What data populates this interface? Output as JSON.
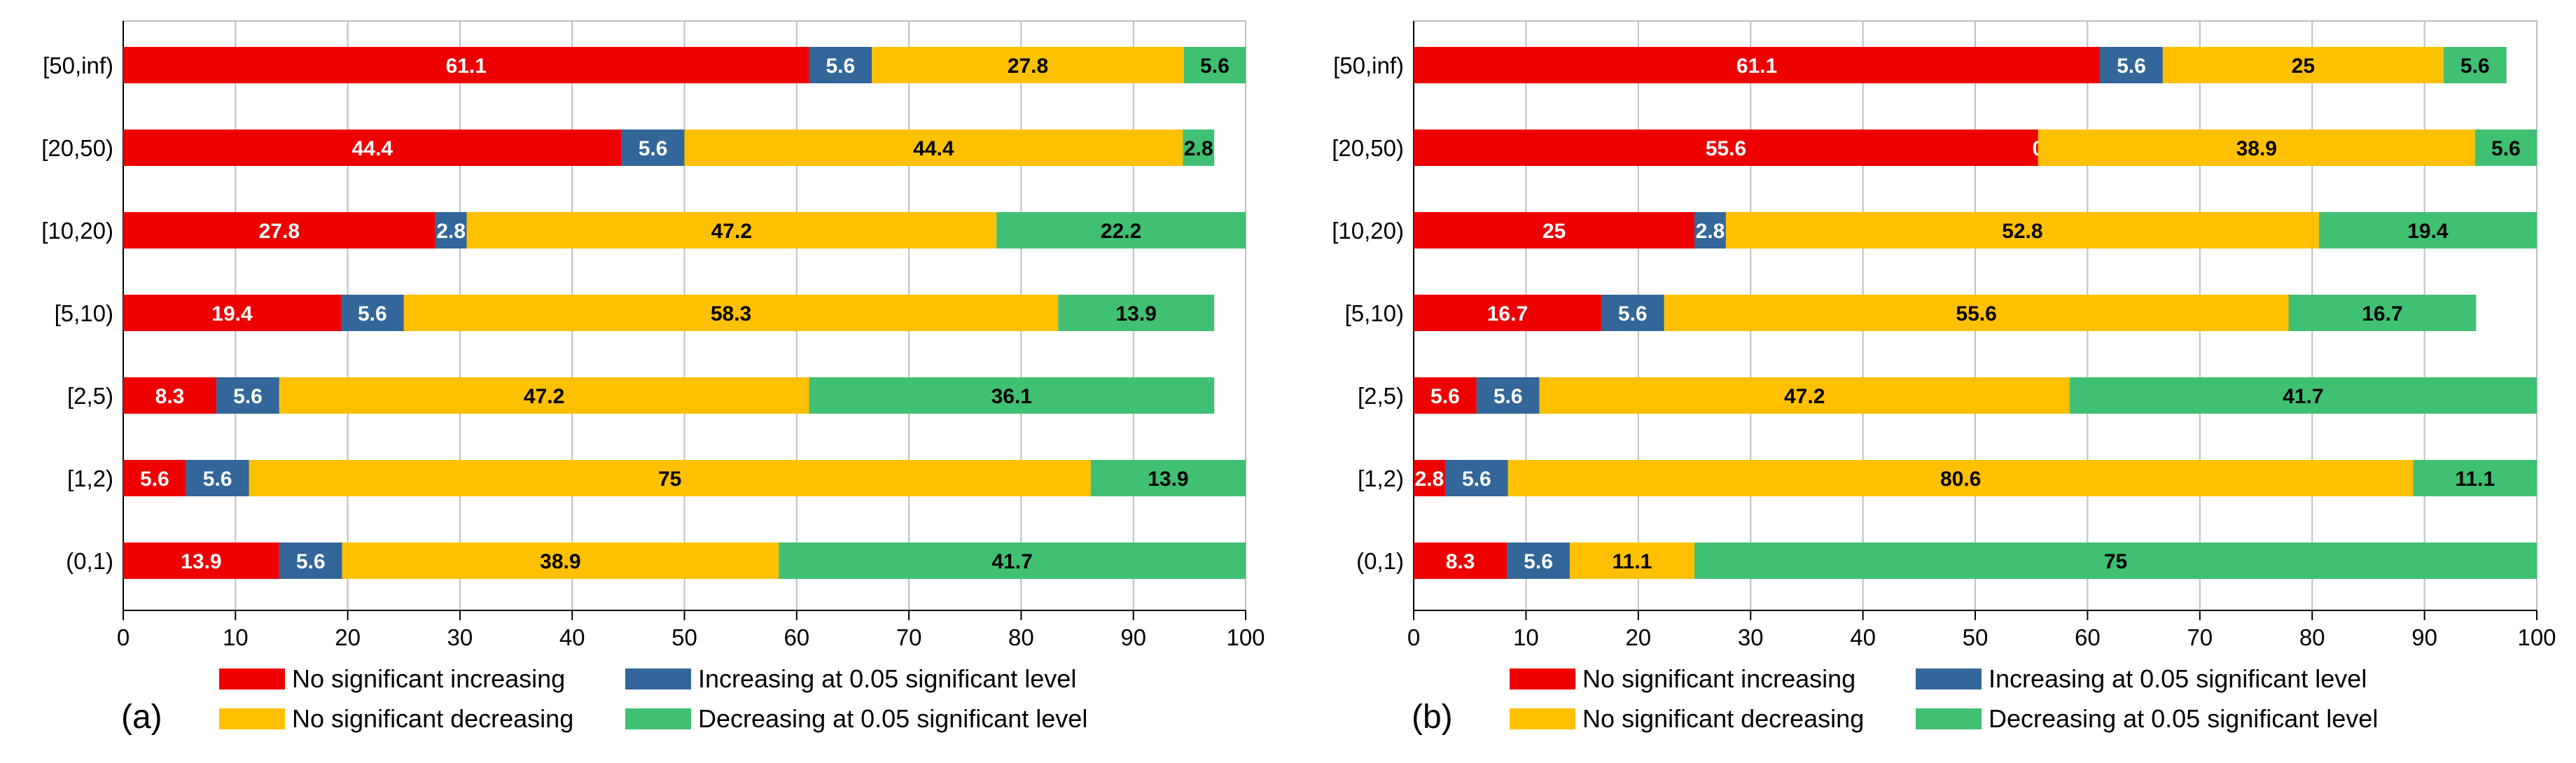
{
  "colors": {
    "no_sig_increasing": "#ee0000",
    "increasing_005": "#336699",
    "no_sig_decreasing": "#ffc000",
    "decreasing_005": "#3fc072",
    "grid": "#bfbfbf",
    "axis": "#000000"
  },
  "chart_data": [
    {
      "type": "bar",
      "orientation": "horizontal",
      "stacked": true,
      "panel_label": "(a)",
      "categories": [
        "[50,inf)",
        "[20,50)",
        "[10,20)",
        "[5,10)",
        "[2,5)",
        "[1,2)",
        "(0,1)"
      ],
      "xlim": [
        0,
        100
      ],
      "xticks": [
        "0",
        "10",
        "20",
        "30",
        "40",
        "50",
        "60",
        "70",
        "80",
        "90",
        "100"
      ],
      "grid": "vertical",
      "series": [
        {
          "name": "No significant increasing",
          "color_key": "no_sig_increasing",
          "label_color": "#ffffff",
          "values": [
            61.1,
            44.4,
            27.8,
            19.4,
            8.3,
            5.6,
            13.9
          ]
        },
        {
          "name": "Increasing at 0.05 significant level",
          "color_key": "increasing_005",
          "label_color": "#ffffff",
          "values": [
            5.6,
            5.6,
            2.8,
            5.6,
            5.6,
            5.6,
            5.6
          ]
        },
        {
          "name": "No significant decreasing",
          "color_key": "no_sig_decreasing",
          "label_color": "#000000",
          "values": [
            27.8,
            44.4,
            47.2,
            58.3,
            47.2,
            75.0,
            38.9
          ]
        },
        {
          "name": "Decreasing at 0.05 significant level",
          "color_key": "decreasing_005",
          "label_color": "#000000",
          "values": [
            5.6,
            2.8,
            22.2,
            13.9,
            36.1,
            13.9,
            41.7
          ]
        }
      ],
      "legend": {
        "position": "bottom",
        "columns": 2
      }
    },
    {
      "type": "bar",
      "orientation": "horizontal",
      "stacked": true,
      "panel_label": "(b)",
      "categories": [
        "[50,inf)",
        "[20,50)",
        "[10,20)",
        "[5,10)",
        "[2,5)",
        "[1,2)",
        "(0,1)"
      ],
      "xlim": [
        0,
        100
      ],
      "xticks": [
        "0",
        "10",
        "20",
        "30",
        "40",
        "50",
        "60",
        "70",
        "80",
        "90",
        "100"
      ],
      "grid": "vertical",
      "series": [
        {
          "name": "No significant increasing",
          "color_key": "no_sig_increasing",
          "label_color": "#ffffff",
          "values": [
            61.1,
            55.6,
            25.0,
            16.7,
            5.6,
            2.8,
            8.3
          ]
        },
        {
          "name": "Increasing at 0.05 significant level",
          "color_key": "increasing_005",
          "label_color": "#ffffff",
          "values": [
            5.6,
            0.0,
            2.8,
            5.6,
            5.6,
            5.6,
            5.6
          ]
        },
        {
          "name": "No significant decreasing",
          "color_key": "no_sig_decreasing",
          "label_color": "#000000",
          "values": [
            25.0,
            38.9,
            52.8,
            55.6,
            47.2,
            80.6,
            11.1
          ]
        },
        {
          "name": "Decreasing at 0.05 significant level",
          "color_key": "decreasing_005",
          "label_color": "#000000",
          "values": [
            5.6,
            5.6,
            19.4,
            16.7,
            41.7,
            11.1,
            75.0
          ]
        }
      ],
      "legend": {
        "position": "bottom",
        "columns": 2
      }
    }
  ]
}
